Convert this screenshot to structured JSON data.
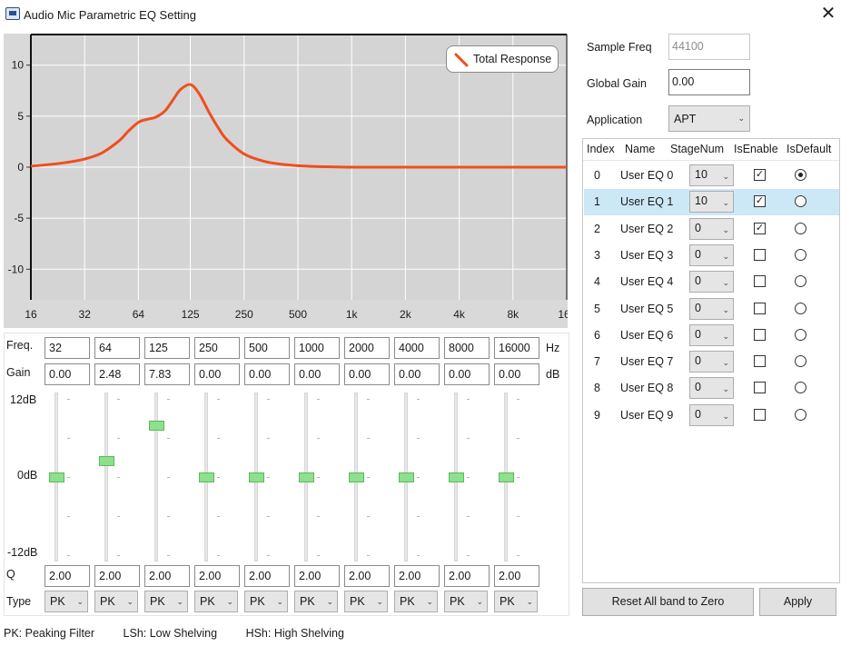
{
  "window": {
    "title": "Audio Mic Parametric EQ Setting"
  },
  "chart_data": {
    "type": "line",
    "legend": "Total Response",
    "legend_position": "top-right",
    "x_scale": "log",
    "x_tick_labels": [
      "16",
      "32",
      "64",
      "125",
      "250",
      "500",
      "1k",
      "2k",
      "4k",
      "8k",
      "16k"
    ],
    "x_tick_values": [
      16,
      32,
      64,
      125,
      250,
      500,
      1000,
      2000,
      4000,
      8000,
      16000
    ],
    "y_tick_labels": [
      "10",
      "5",
      "0",
      "-5",
      "-10"
    ],
    "y_tick_values": [
      10,
      5,
      0,
      -5,
      -10
    ],
    "ylim": [
      -13,
      13
    ],
    "grid": true,
    "series": [
      {
        "name": "Total Response",
        "color": "#f04e1f",
        "x": [
          16,
          20,
          25,
          32,
          40,
          50,
          56,
          64,
          72,
          80,
          90,
          100,
          110,
          125,
          140,
          160,
          180,
          200,
          250,
          320,
          400,
          500,
          700,
          1000,
          2000,
          4000,
          8000,
          16000
        ],
        "y": [
          0.1,
          0.25,
          0.45,
          0.8,
          1.4,
          2.6,
          3.5,
          4.4,
          4.7,
          4.9,
          5.5,
          6.6,
          7.6,
          8.1,
          7.2,
          5.3,
          3.8,
          2.7,
          1.3,
          0.6,
          0.3,
          0.15,
          0.05,
          0.0,
          0.0,
          0.0,
          0.0,
          0.0
        ]
      }
    ]
  },
  "bands": {
    "freq_label": "Freq.",
    "gain_label": "Gain",
    "q_label": "Q",
    "type_label": "Type",
    "freq_unit": "Hz",
    "gain_unit": "dB",
    "slider_top_label": "12dB",
    "slider_mid_label": "0dB",
    "slider_bottom_label": "-12dB",
    "slider_range": [
      -12,
      12
    ],
    "items": [
      {
        "freq": "32",
        "gain": "0.00",
        "gain_value": 0.0,
        "q": "2.00",
        "type": "PK"
      },
      {
        "freq": "64",
        "gain": "2.48",
        "gain_value": 2.48,
        "q": "2.00",
        "type": "PK"
      },
      {
        "freq": "125",
        "gain": "7.83",
        "gain_value": 7.83,
        "q": "2.00",
        "type": "PK"
      },
      {
        "freq": "250",
        "gain": "0.00",
        "gain_value": 0.0,
        "q": "2.00",
        "type": "PK"
      },
      {
        "freq": "500",
        "gain": "0.00",
        "gain_value": 0.0,
        "q": "2.00",
        "type": "PK"
      },
      {
        "freq": "1000",
        "gain": "0.00",
        "gain_value": 0.0,
        "q": "2.00",
        "type": "PK"
      },
      {
        "freq": "2000",
        "gain": "0.00",
        "gain_value": 0.0,
        "q": "2.00",
        "type": "PK"
      },
      {
        "freq": "4000",
        "gain": "0.00",
        "gain_value": 0.0,
        "q": "2.00",
        "type": "PK"
      },
      {
        "freq": "8000",
        "gain": "0.00",
        "gain_value": 0.0,
        "q": "2.00",
        "type": "PK"
      },
      {
        "freq": "16000",
        "gain": "0.00",
        "gain_value": 0.0,
        "q": "2.00",
        "type": "PK"
      }
    ]
  },
  "settings": {
    "sample_freq_label": "Sample Freq",
    "sample_freq_value": "44100",
    "global_gain_label": "Global Gain",
    "global_gain_value": "0.00",
    "application_label": "Application",
    "application_value": "APT"
  },
  "eq_table": {
    "columns": [
      "Index",
      "Name",
      "StageNum",
      "IsEnable",
      "IsDefault"
    ],
    "selected_index": 1,
    "rows": [
      {
        "index": "0",
        "name": "User EQ 0",
        "stage": "10",
        "enabled": true,
        "default": true
      },
      {
        "index": "1",
        "name": "User EQ 1",
        "stage": "10",
        "enabled": true,
        "default": false
      },
      {
        "index": "2",
        "name": "User EQ 2",
        "stage": "0",
        "enabled": true,
        "default": false
      },
      {
        "index": "3",
        "name": "User EQ 3",
        "stage": "0",
        "enabled": false,
        "default": false
      },
      {
        "index": "4",
        "name": "User EQ 4",
        "stage": "0",
        "enabled": false,
        "default": false
      },
      {
        "index": "5",
        "name": "User EQ 5",
        "stage": "0",
        "enabled": false,
        "default": false
      },
      {
        "index": "6",
        "name": "User EQ 6",
        "stage": "0",
        "enabled": false,
        "default": false
      },
      {
        "index": "7",
        "name": "User EQ 7",
        "stage": "0",
        "enabled": false,
        "default": false
      },
      {
        "index": "8",
        "name": "User EQ 8",
        "stage": "0",
        "enabled": false,
        "default": false
      },
      {
        "index": "9",
        "name": "User EQ 9",
        "stage": "0",
        "enabled": false,
        "default": false
      }
    ]
  },
  "buttons": {
    "reset_label": "Reset All band to Zero",
    "apply_label": "Apply"
  },
  "footer": {
    "pk": "PK: Peaking Filter",
    "lsh": "LSh: Low Shelving",
    "hsh": "HSh: High Shelving"
  },
  "icons": {
    "app": "monitor-icon",
    "close": "close-icon",
    "check": "checkmark-icon",
    "dropdown": "chevron-down-icon"
  }
}
